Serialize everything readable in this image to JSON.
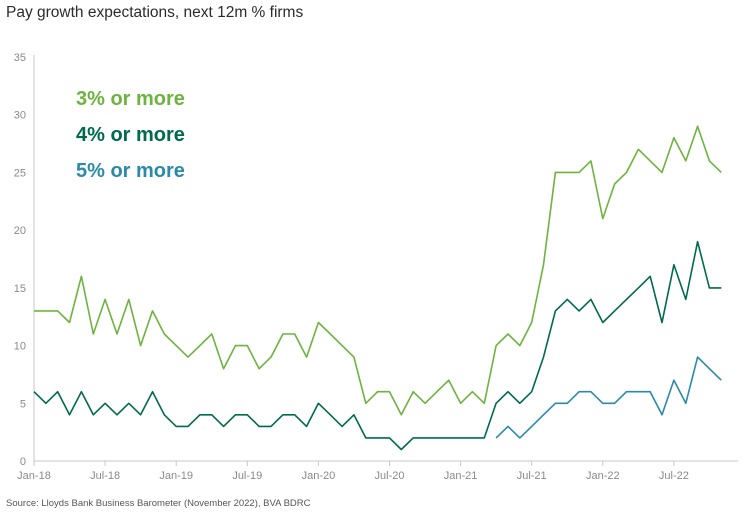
{
  "title": "Pay growth expectations, next 12m % firms",
  "source": "Source: Lloyds Bank Business Barometer (November 2022), BVA BDRC",
  "chart_data": {
    "type": "line",
    "title": "Pay growth expectations, next 12m % firms",
    "xlabel": "",
    "ylabel": "",
    "ylim": [
      0,
      35
    ],
    "yticks": [
      0,
      5,
      10,
      15,
      20,
      25,
      30,
      35
    ],
    "x_start": "Jan-18",
    "xticks": [
      "Jan-18",
      "Jul-18",
      "Jan-19",
      "Jul-19",
      "Jan-20",
      "Jul-20",
      "Jan-21",
      "Jul-21",
      "Jan-22",
      "Jul-22"
    ],
    "grid": false,
    "legend_position": "top-left",
    "series": [
      {
        "name": "3% or more",
        "color": "#6db33f",
        "values": [
          13,
          13,
          13,
          12,
          16,
          11,
          14,
          11,
          14,
          10,
          13,
          11,
          10,
          9,
          10,
          11,
          8,
          10,
          10,
          8,
          9,
          11,
          11,
          9,
          12,
          11,
          10,
          9,
          5,
          6,
          6,
          4,
          6,
          5,
          6,
          7,
          5,
          6,
          5,
          10,
          11,
          10,
          12,
          17,
          25,
          25,
          25,
          26,
          21,
          24,
          25,
          27,
          26,
          25,
          28,
          26,
          29,
          26,
          25
        ]
      },
      {
        "name": "4% or more",
        "color": "#006a4d",
        "values": [
          6,
          5,
          6,
          4,
          6,
          4,
          5,
          4,
          5,
          4,
          6,
          4,
          3,
          3,
          4,
          4,
          3,
          4,
          4,
          3,
          3,
          4,
          4,
          3,
          5,
          4,
          3,
          4,
          2,
          2,
          2,
          1,
          2,
          2,
          2,
          2,
          2,
          2,
          2,
          5,
          6,
          5,
          6,
          9,
          13,
          14,
          13,
          14,
          12,
          13,
          14,
          15,
          16,
          12,
          17,
          14,
          19,
          15,
          15
        ]
      },
      {
        "name": "5% or more",
        "color": "#2a8aa8",
        "values": [
          null,
          null,
          null,
          null,
          null,
          null,
          null,
          null,
          null,
          null,
          null,
          null,
          null,
          null,
          null,
          null,
          null,
          null,
          null,
          null,
          null,
          null,
          null,
          null,
          null,
          null,
          null,
          null,
          null,
          null,
          null,
          null,
          null,
          null,
          null,
          null,
          null,
          null,
          null,
          2,
          3,
          2,
          3,
          4,
          5,
          5,
          6,
          6,
          5,
          5,
          6,
          6,
          6,
          4,
          7,
          5,
          9,
          8,
          7
        ]
      }
    ]
  }
}
